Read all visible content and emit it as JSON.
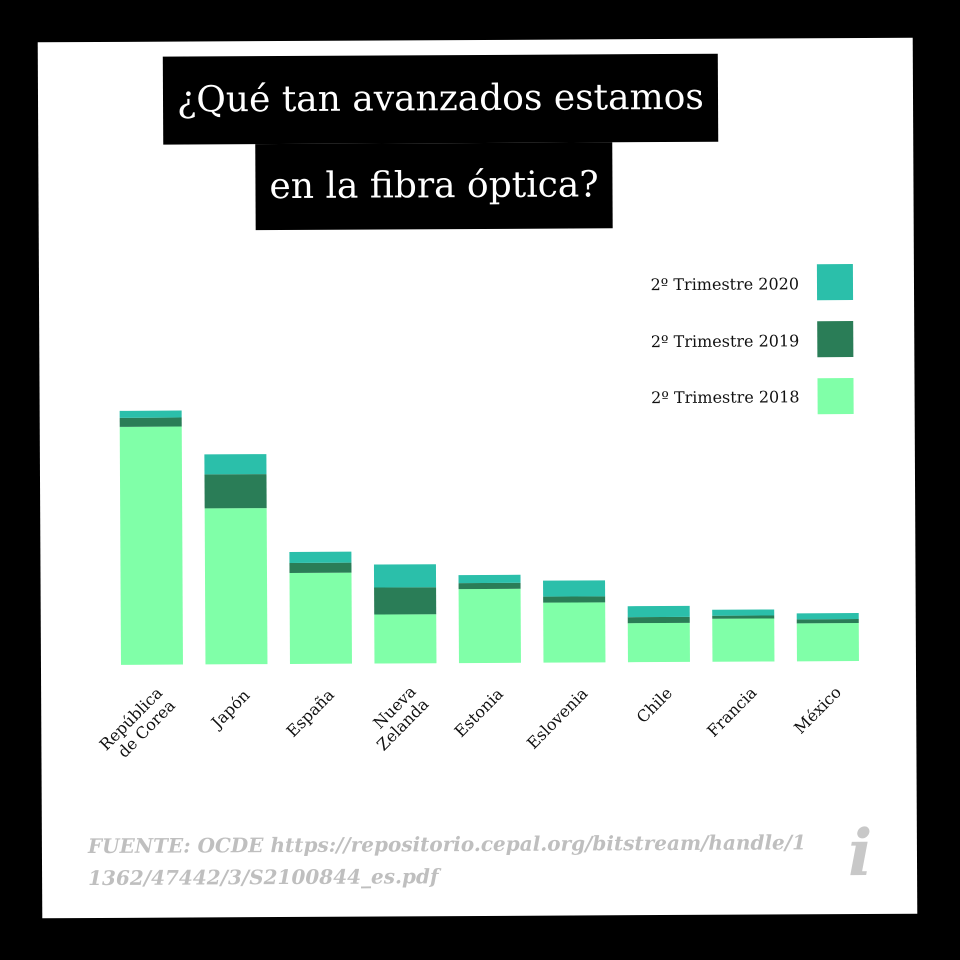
{
  "title_lines": [
    "¿Qué tan avanzados estamos",
    "en la fibra óptica?"
  ],
  "source": "FUENTE: OCDE https://repositorio.cepal.org/bitstream/handle/11362/47442/3/S2100844_es.pdf",
  "logo": "i",
  "colors": {
    "s2018": "#80ffa8",
    "s2019": "#2a7d57",
    "s2020": "#2bbfaa"
  },
  "chart_data": {
    "type": "bar",
    "stacked": true,
    "categories": [
      "República de Corea",
      "Japón",
      "España",
      "Nueva Zelanda",
      "Estonia",
      "Eslovenia",
      "Chile",
      "Francia",
      "México"
    ],
    "series": [
      {
        "name": "2º Trimestre 2018",
        "color": "#80ffa8",
        "values": [
          238,
          156,
          91,
          49,
          74,
          60,
          39,
          43,
          38
        ]
      },
      {
        "name": "2º Trimestre 2019",
        "color": "#2a7d57",
        "values": [
          9,
          34,
          10,
          27,
          6,
          6,
          6,
          3,
          4
        ]
      },
      {
        "name": "2º Trimestre 2020",
        "color": "#2bbfaa",
        "values": [
          7,
          20,
          11,
          23,
          8,
          16,
          11,
          6,
          6
        ]
      }
    ],
    "legend_order": [
      2,
      1,
      0
    ],
    "ylim": [
      0,
      255
    ],
    "legend": "top-right",
    "grid": false
  }
}
